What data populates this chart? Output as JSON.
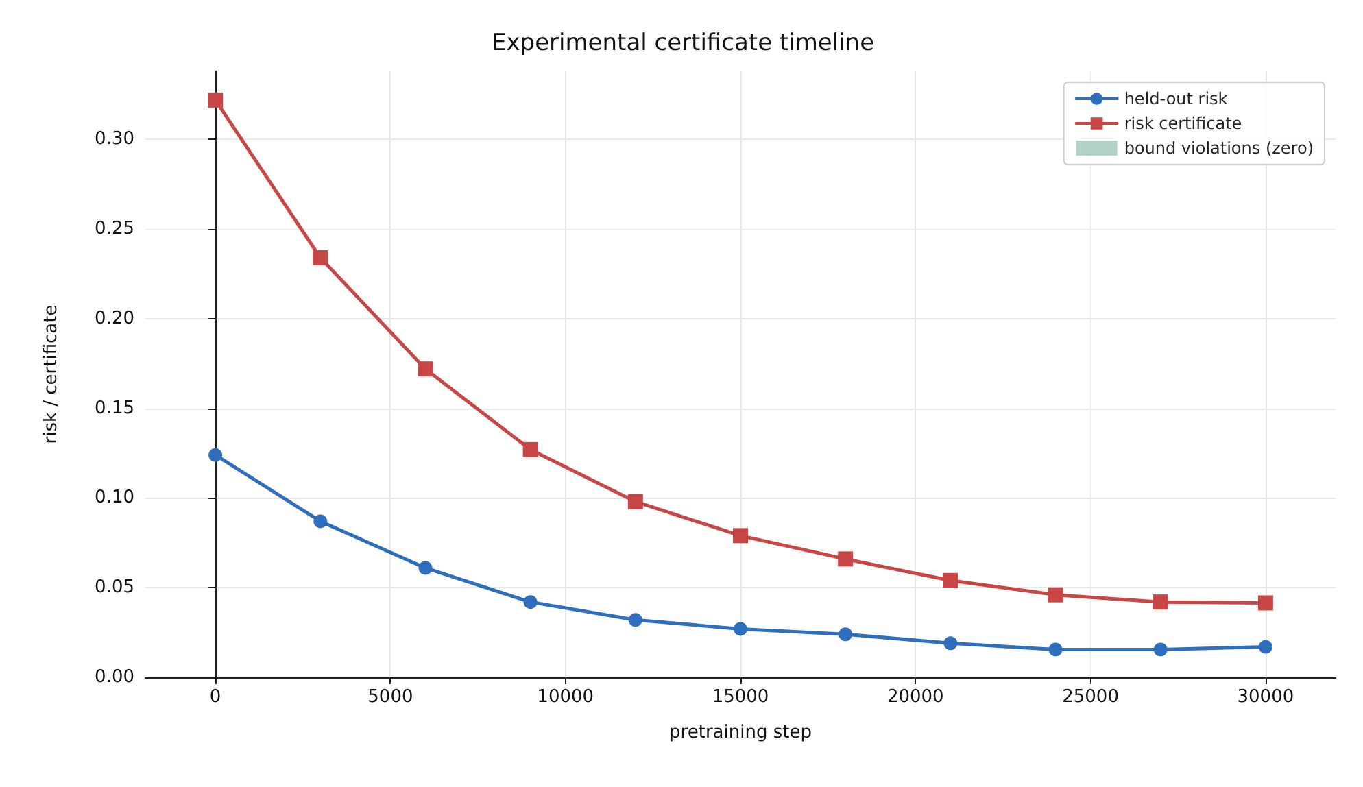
{
  "chart_data": {
    "type": "line",
    "title": "Experimental certificate timeline",
    "xlabel": "pretraining step",
    "ylabel": "risk / certificate",
    "x": [
      0,
      3000,
      6000,
      9000,
      12000,
      15000,
      18000,
      21000,
      24000,
      27000,
      30000
    ],
    "series": [
      {
        "name": "held-out risk",
        "color": "#2f6ebc",
        "marker": "circle",
        "values": [
          0.124,
          0.087,
          0.061,
          0.042,
          0.032,
          0.027,
          0.024,
          0.019,
          0.0155,
          0.0155,
          0.017
        ]
      },
      {
        "name": "risk certificate",
        "color": "#c84646",
        "marker": "square",
        "values": [
          0.322,
          0.234,
          0.172,
          0.127,
          0.098,
          0.079,
          0.066,
          0.054,
          0.046,
          0.042,
          0.0415
        ]
      },
      {
        "name": "bound violations (zero)",
        "type": "bar",
        "color": "#b2d3c5",
        "values": [
          0,
          0,
          0,
          0,
          0,
          0,
          0,
          0,
          0,
          0,
          0
        ]
      }
    ],
    "xlim": [
      -2000,
      32000
    ],
    "xticks": [
      0,
      5000,
      10000,
      15000,
      20000,
      25000,
      30000
    ],
    "ylim": [
      0,
      0.338
    ],
    "yticks": [
      {
        "value": 0,
        "label": "0.00"
      },
      0.05,
      {
        "value": 0.1,
        "label": "0.10"
      },
      0.15,
      {
        "value": 0.2,
        "label": "0.20"
      },
      0.25,
      {
        "value": 0.3,
        "label": "0.30"
      }
    ],
    "grid": true,
    "legend": "top right",
    "line_style": "solid"
  }
}
